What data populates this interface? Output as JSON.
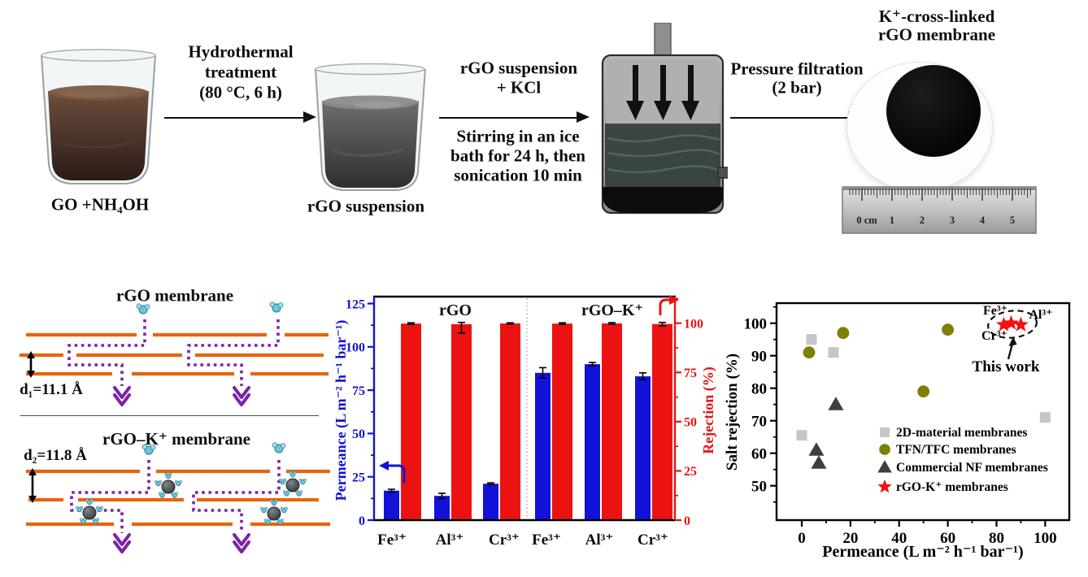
{
  "process": {
    "step1_label": "GO +NH₄OH",
    "arrow1_caption": [
      "Hydrothermal",
      "treatment",
      "(80 °C, 6 h)"
    ],
    "step2_label": "rGO suspension",
    "arrow2_caption_top": [
      "rGO suspension",
      "+  KCl"
    ],
    "arrow2_caption_bottom": [
      "Stirring in an ice",
      "bath for 24 h, then",
      "sonication 10 min"
    ],
    "arrow3_caption": [
      "Pressure filtration",
      "(2 bar)"
    ],
    "product_label": [
      "K⁺-cross-linked",
      "rGO membrane"
    ],
    "ruler_unit_labels": [
      "0 cm",
      "1",
      "2",
      "3",
      "4",
      "5"
    ]
  },
  "schematic": {
    "top_title": "rGO membrane",
    "top_spacing_label": "d₁=11.1 Å",
    "bottom_title": "rGO–K⁺ membrane",
    "bottom_spacing_label": "d₂=11.8 Å"
  },
  "chart_data": [
    {
      "type": "bar",
      "group_labels": [
        "rGO",
        "rGO–K⁺"
      ],
      "categories": [
        "Fe³⁺",
        "Al³⁺",
        "Cr³⁺",
        "Fe³⁺",
        "Al³⁺",
        "Cr³⁺"
      ],
      "series": [
        {
          "name": "Permeance",
          "axis": "left",
          "color": "#1212d8",
          "values": [
            17,
            14,
            21,
            85,
            90,
            83
          ],
          "errors": [
            0.8,
            1.5,
            0.5,
            3,
            1,
            2
          ]
        },
        {
          "name": "Rejection",
          "axis": "right",
          "color": "#ec1212",
          "values": [
            99.8,
            99.5,
            99.9,
            99.8,
            99.9,
            99.6
          ],
          "errors": [
            0.4,
            4.5,
            0.3,
            0.4,
            0.4,
            1
          ]
        }
      ],
      "ylabel_left": "Permeance (L m⁻² h⁻¹ bar⁻¹)",
      "ylabel_right": "Rejection (%)",
      "yticks_left": [
        0,
        25,
        50,
        75,
        100,
        125
      ],
      "yticks_right": [
        0,
        25,
        50,
        75,
        100
      ],
      "ylim_left": [
        0,
        129
      ],
      "ylim_right": [
        0,
        113.5
      ],
      "grid": false
    },
    {
      "type": "scatter",
      "xlabel": "Permeance (L m⁻² h⁻¹ bar⁻¹)",
      "ylabel": "Salt rejection (%)",
      "xticks": [
        0,
        20,
        40,
        60,
        80,
        100
      ],
      "yticks": [
        50,
        60,
        70,
        80,
        90,
        100
      ],
      "xlim": [
        -10.4,
        109.9
      ],
      "ylim": [
        39.4,
        106.2
      ],
      "legend_position": "inside-right-bottom",
      "series": [
        {
          "name": "2D-material membranes",
          "marker": "square",
          "color": "#c6c6c6",
          "points": [
            [
              0,
              65.5
            ],
            [
              4,
              95
            ],
            [
              13,
              91
            ],
            [
              100,
              71
            ]
          ]
        },
        {
          "name": "TFN/TFC membranes",
          "marker": "circle",
          "color": "#7f7f00",
          "points": [
            [
              3,
              91
            ],
            [
              17,
              97
            ],
            [
              50,
              79
            ],
            [
              60,
              98
            ]
          ]
        },
        {
          "name": "Commercial NF membranes",
          "marker": "triangle",
          "color": "#3d3d44",
          "points": [
            [
              6,
              61
            ],
            [
              7,
              57
            ],
            [
              14,
              75
            ]
          ]
        },
        {
          "name": "rGO-K⁺ membranes",
          "marker": "star",
          "color": "#f31111",
          "points": [
            [
              83,
              99.5
            ],
            [
              86,
              100
            ],
            [
              90,
              99.5
            ]
          ]
        }
      ],
      "annotation": {
        "point_labels": [
          "Fe³⁺",
          "Al³⁺",
          "Cr³⁺"
        ],
        "caption": "This work"
      }
    }
  ]
}
